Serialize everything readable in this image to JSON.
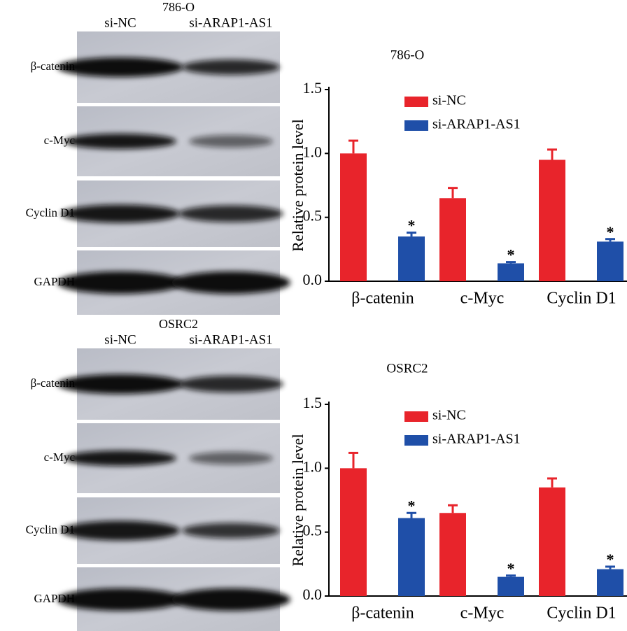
{
  "blots": [
    {
      "title": "786-O",
      "lanes": [
        "si-NC",
        "si-ARAP1-AS1"
      ],
      "rows": [
        "β-catenin",
        "c-Myc",
        "Cyclin D1",
        "GAPDH"
      ]
    },
    {
      "title": "OSRC2",
      "lanes": [
        "si-NC",
        "si-ARAP1-AS1"
      ],
      "rows": [
        "β-catenin",
        "c-Myc",
        "Cyclin D1",
        "GAPDH"
      ]
    }
  ],
  "chart_data": [
    {
      "type": "bar",
      "title": "786-O",
      "y_label": "Relative protein level",
      "categories": [
        "β-catenin",
        "c-Myc",
        "Cyclin D1"
      ],
      "series": [
        {
          "name": "si-NC",
          "color": "#e8242b",
          "values": [
            1.0,
            0.65,
            0.95
          ],
          "errors": [
            0.1,
            0.08,
            0.08
          ]
        },
        {
          "name": "si-ARAP1-AS1",
          "color": "#1f4fa8",
          "values": [
            0.35,
            0.14,
            0.31
          ],
          "errors": [
            0.03,
            0.01,
            0.02
          ],
          "significance": [
            "*",
            "*",
            "*"
          ]
        }
      ],
      "ylim": [
        0,
        1.5
      ],
      "yticks": [
        {
          "value": 0,
          "label": "0.0"
        },
        {
          "value": 0.5,
          "label": "0.5"
        },
        {
          "value": 1,
          "label": "1.0"
        },
        {
          "value": 1.5,
          "label": "1.5"
        }
      ],
      "legend": "top-right",
      "grid": false
    },
    {
      "type": "bar",
      "title": "OSRC2",
      "y_label": "Relative protein level",
      "categories": [
        "β-catenin",
        "c-Myc",
        "Cyclin D1"
      ],
      "series": [
        {
          "name": "si-NC",
          "color": "#e8242b",
          "values": [
            1.0,
            0.65,
            0.85
          ],
          "errors": [
            0.12,
            0.06,
            0.07
          ]
        },
        {
          "name": "si-ARAP1-AS1",
          "color": "#1f4fa8",
          "values": [
            0.61,
            0.15,
            0.21
          ],
          "errors": [
            0.04,
            0.01,
            0.02
          ],
          "significance": [
            "*",
            "*",
            "*"
          ]
        }
      ],
      "ylim": [
        0,
        1.5
      ],
      "yticks": [
        {
          "value": 0,
          "label": "0.0"
        },
        {
          "value": 0.5,
          "label": "0.5"
        },
        {
          "value": 1,
          "label": "1.0"
        },
        {
          "value": 1.5,
          "label": "1.5"
        }
      ],
      "legend": "top-right",
      "grid": false
    }
  ]
}
